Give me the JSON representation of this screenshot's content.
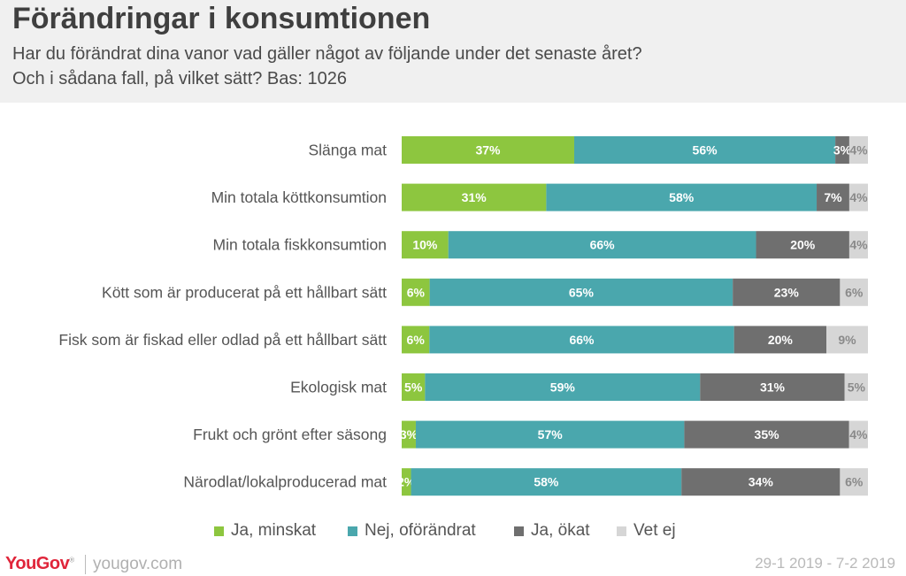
{
  "header": {
    "title": "Förändringar i konsumtionen",
    "subtitle_line1": "Har du förändrat dina vanor vad gäller något av följande under det senaste året?",
    "subtitle_line2": "Och i sådana fall, på vilket sätt? Bas: 1026"
  },
  "chart_data": {
    "type": "bar",
    "orientation": "horizontal",
    "stacked": true,
    "categories": [
      "Slänga mat",
      "Min totala köttkonsumtion",
      "Min totala fiskkonsumtion",
      "Kött som är producerat på ett hållbart sätt",
      "Fisk som är fiskad eller odlad på ett hållbart sätt",
      "Ekologisk mat",
      "Frukt och grönt efter säsong",
      "Närodlat/lokalproducerad mat"
    ],
    "series": [
      {
        "name": "Ja, minskat",
        "color": "#8dc63f",
        "values": [
          37,
          31,
          10,
          6,
          6,
          5,
          3,
          2
        ]
      },
      {
        "name": "Nej, oförändrat",
        "color": "#4aa7ad",
        "values": [
          56,
          58,
          66,
          65,
          66,
          59,
          57,
          58
        ]
      },
      {
        "name": "Ja, ökat",
        "color": "#6f6f6f",
        "values": [
          3,
          7,
          20,
          23,
          20,
          31,
          35,
          34
        ]
      },
      {
        "name": "Vet ej",
        "color": "#d6d6d6",
        "values": [
          4,
          4,
          4,
          6,
          9,
          5,
          4,
          6
        ]
      }
    ],
    "unit": "%",
    "legend_position": "bottom",
    "grid": false
  },
  "footer": {
    "logo": "YouGov",
    "site": "yougov.com",
    "date_range": "29-1 2019 - 7-2 2019"
  }
}
